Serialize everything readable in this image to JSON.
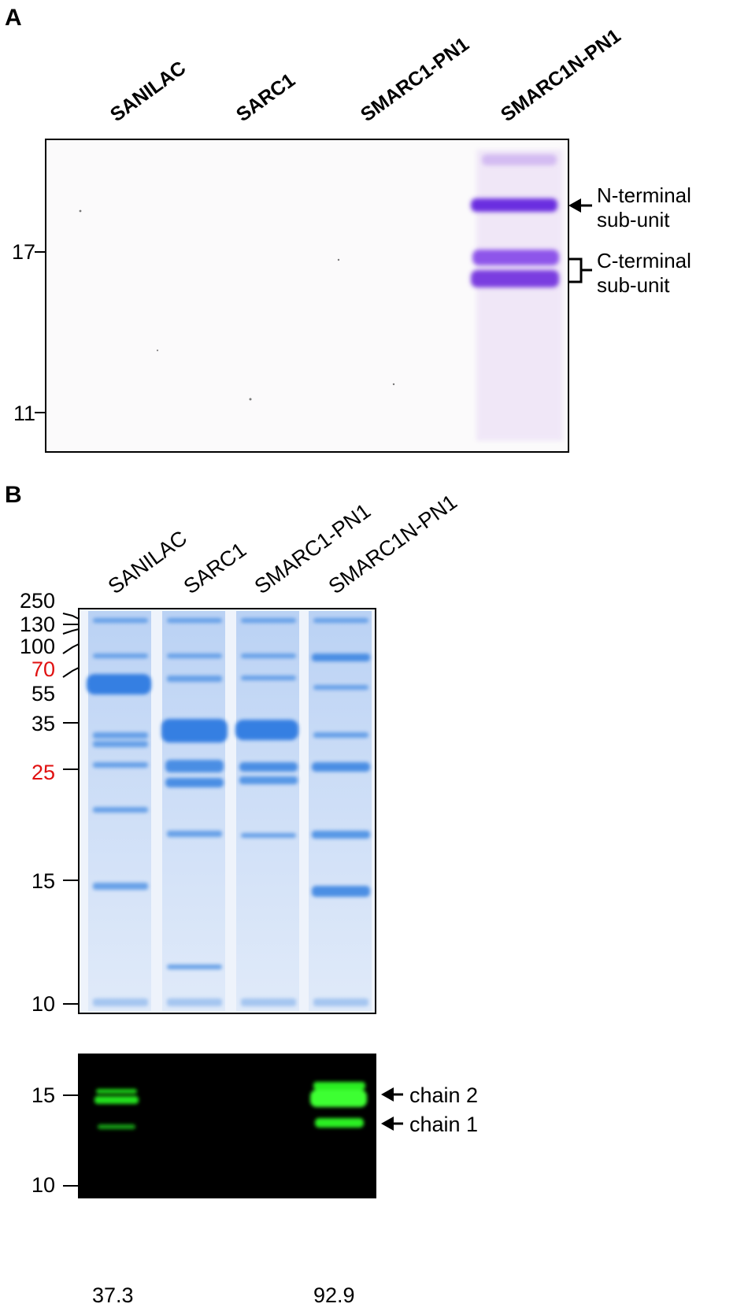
{
  "panelA": {
    "letter": "A",
    "lanes": [
      "SANILAC",
      "SARC1",
      "SMARC1-PN1",
      "SMARC1N-PN1"
    ],
    "markers": [
      "17",
      "11"
    ],
    "annotations": {
      "n_terminal": [
        "N-terminal",
        "sub-unit"
      ],
      "c_terminal": [
        "C-terminal",
        "sub-unit"
      ]
    },
    "colors": {
      "band": "#7a3ee0",
      "background": "#fbfafb"
    }
  },
  "panelB": {
    "letter": "B",
    "lanes": [
      "SANILAC",
      "SARC1",
      "SMARC1-PN1",
      "SMARC1N-PN1"
    ],
    "markers": [
      {
        "label": "250",
        "color": "#000000"
      },
      {
        "label": "130",
        "color": "#000000"
      },
      {
        "label": "100",
        "color": "#000000"
      },
      {
        "label": "70",
        "color": "#e01010"
      },
      {
        "label": "55",
        "color": "#000000"
      },
      {
        "label": "35",
        "color": "#000000"
      },
      {
        "label": "25",
        "color": "#e01010"
      },
      {
        "label": "15",
        "color": "#000000"
      },
      {
        "label": "10",
        "color": "#000000"
      }
    ],
    "blot_markers": [
      "15",
      "10"
    ],
    "blot_annotations": [
      "chain 2",
      "chain 1"
    ],
    "quantification": [
      "37.3",
      "92.9"
    ],
    "colors": {
      "gel_band": "#2a7de0",
      "gel_bg": "#e8f0fb",
      "blot_band": "#22e01a",
      "blot_bg": "#000000"
    }
  }
}
